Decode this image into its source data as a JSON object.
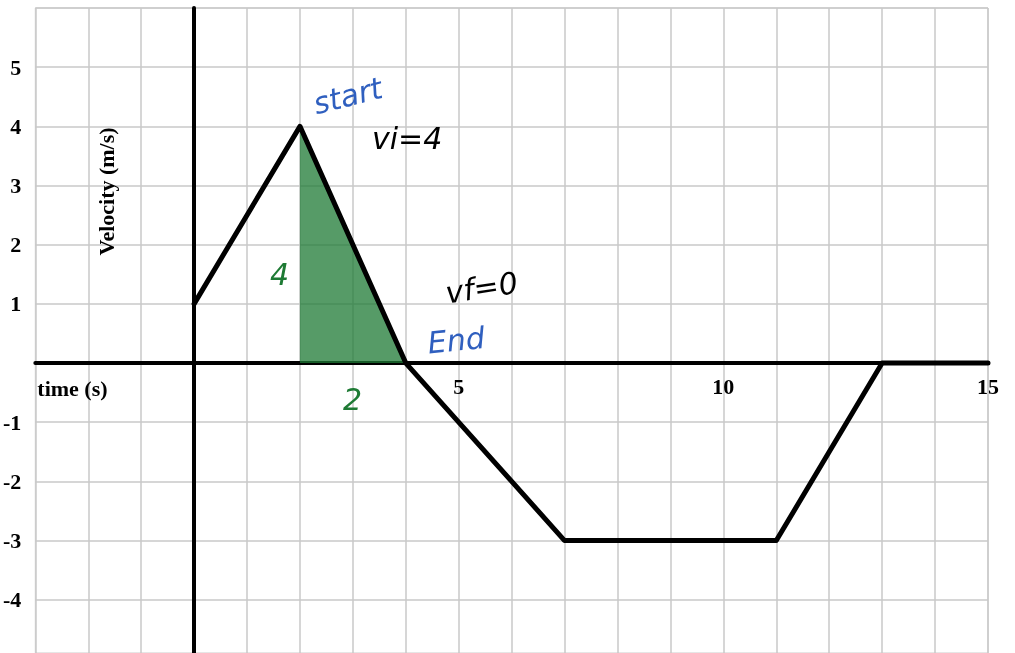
{
  "chart_data": {
    "type": "line",
    "xlabel": "time (s)",
    "ylabel": "Velocity (m/s)",
    "xlim": [
      -3,
      15
    ],
    "ylim": [
      -4.9,
      6
    ],
    "xticks": [
      {
        "value": -3,
        "label": null
      },
      {
        "value": -2,
        "label": null
      },
      {
        "value": -1,
        "label": null
      },
      {
        "value": 0,
        "label": null
      },
      {
        "value": 1,
        "label": null
      },
      {
        "value": 2,
        "label": null
      },
      {
        "value": 3,
        "label": null
      },
      {
        "value": 4,
        "label": null
      },
      5,
      {
        "value": 6,
        "label": null
      },
      {
        "value": 7,
        "label": null
      },
      {
        "value": 8,
        "label": null
      },
      {
        "value": 9,
        "label": null
      },
      10,
      {
        "value": 11,
        "label": null
      },
      {
        "value": 12,
        "label": null
      },
      {
        "value": 13,
        "label": null
      },
      {
        "value": 14,
        "label": null
      },
      15
    ],
    "yticks": [
      -4,
      -3,
      -2,
      -1,
      {
        "value": 0,
        "label": null
      },
      1,
      2,
      3,
      4,
      5,
      {
        "value": 6,
        "label": null
      }
    ],
    "grid": true,
    "marker": "none",
    "line_style": "solid",
    "series": [
      {
        "color": "#000000",
        "x": [
          0,
          2,
          4,
          7,
          11,
          13,
          15
        ],
        "values": [
          1,
          4,
          0,
          -3,
          -3,
          0,
          0
        ]
      },
      {
        "type": "area",
        "color": "#1e7a34",
        "x": [
          2,
          4
        ],
        "values": [
          4,
          0
        ]
      }
    ],
    "annotations": [
      {
        "text": "start",
        "x": 2,
        "y": 4
      },
      {
        "text": "vi=4",
        "x": 2,
        "y": 4
      },
      {
        "text": "vf=0",
        "x": 4,
        "y": 0
      },
      {
        "text": "End",
        "x": 4,
        "y": 0
      },
      {
        "text": "4",
        "x": 2,
        "y": 1.5
      },
      {
        "text": "2",
        "x": 3,
        "y": 0
      }
    ]
  }
}
